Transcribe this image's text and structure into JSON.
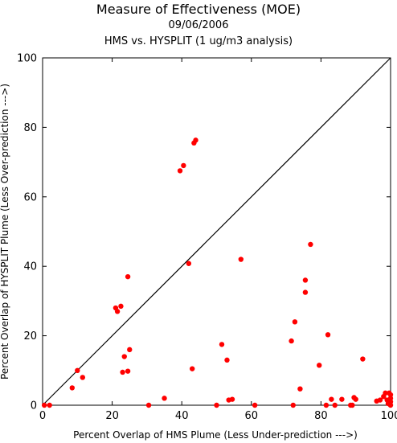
{
  "chart_data": {
    "type": "scatter",
    "title": "Measure of Effectiveness (MOE)",
    "subtitle_date": "09/06/2006",
    "subtitle": "HMS vs. HYSPLIT  (1 ug/m3 analysis)",
    "xlabel": "Percent Overlap of HMS Plume (Less Under-prediction --->)",
    "ylabel": "Percent Overlap of HYSPLIT Plume (Less Over-prediction --->)",
    "xlim": [
      0,
      100
    ],
    "ylim": [
      0,
      100
    ],
    "xticks": [
      0,
      20,
      40,
      60,
      80,
      100
    ],
    "yticks": [
      0,
      20,
      40,
      60,
      80,
      100
    ],
    "diagonal": true,
    "grid": false,
    "marker_color": "#ff0000",
    "points": [
      [
        0.5,
        0
      ],
      [
        2,
        0
      ],
      [
        8.5,
        5
      ],
      [
        10,
        10
      ],
      [
        11.5,
        8
      ],
      [
        21,
        28
      ],
      [
        21.5,
        27
      ],
      [
        22.5,
        28.5
      ],
      [
        23,
        9.5
      ],
      [
        23.5,
        14
      ],
      [
        24.5,
        9.8
      ],
      [
        24.5,
        37
      ],
      [
        25,
        16
      ],
      [
        30.5,
        0
      ],
      [
        35,
        2
      ],
      [
        39.5,
        67.5
      ],
      [
        40.5,
        69
      ],
      [
        42,
        40.8
      ],
      [
        43,
        10.5
      ],
      [
        43.5,
        75.5
      ],
      [
        44,
        76.3
      ],
      [
        50,
        0
      ],
      [
        51.5,
        17.5
      ],
      [
        53,
        13
      ],
      [
        53.5,
        1.5
      ],
      [
        54.5,
        1.7
      ],
      [
        57,
        42
      ],
      [
        61,
        0
      ],
      [
        71.5,
        18.5
      ],
      [
        72,
        0
      ],
      [
        72.5,
        24
      ],
      [
        74,
        4.7
      ],
      [
        75.5,
        36
      ],
      [
        75.5,
        32.5
      ],
      [
        77,
        46.3
      ],
      [
        79.5,
        11.5
      ],
      [
        81.5,
        0
      ],
      [
        82,
        20.3
      ],
      [
        83,
        1.7
      ],
      [
        84,
        0
      ],
      [
        86,
        1.7
      ],
      [
        88.5,
        0
      ],
      [
        89,
        0
      ],
      [
        89.5,
        2.2
      ],
      [
        90,
        1.7
      ],
      [
        92,
        13.3
      ],
      [
        96,
        1.2
      ],
      [
        97,
        1.5
      ],
      [
        98,
        2.5
      ],
      [
        98.5,
        3.5
      ],
      [
        99,
        1.5
      ],
      [
        99.3,
        0.5
      ],
      [
        99.6,
        3.5
      ],
      [
        100,
        0
      ],
      [
        100,
        1
      ],
      [
        100,
        2
      ],
      [
        100,
        3
      ],
      [
        99.8,
        0.2
      ]
    ]
  }
}
